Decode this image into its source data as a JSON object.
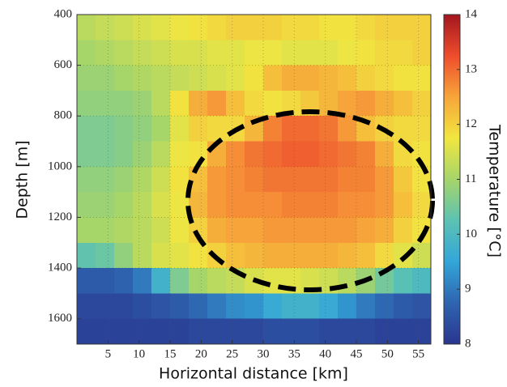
{
  "chart_data": {
    "type": "heatmap",
    "xlabel": "Horizontal distance [km]",
    "ylabel": "Depth [m]",
    "colorbar_label": "Temperature [°C]",
    "xlim": [
      0,
      57
    ],
    "ylim": [
      1700,
      400
    ],
    "xticks": [
      5,
      10,
      15,
      20,
      25,
      30,
      35,
      40,
      45,
      50,
      55
    ],
    "yticks": [
      400,
      600,
      800,
      1000,
      1200,
      1400,
      1600
    ],
    "grid": true,
    "clim": [
      8,
      14
    ],
    "cticks": [
      8,
      9,
      10,
      11,
      12,
      13,
      14
    ],
    "colormap": [
      "#2a3590",
      "#2e64b0",
      "#33a6d8",
      "#5cc2b3",
      "#a6d56a",
      "#f1e640",
      "#f7a53a",
      "#ee4d2c",
      "#a3161e"
    ],
    "xbins": [
      0,
      3,
      6,
      9,
      12,
      15,
      18,
      21,
      24,
      27,
      30,
      33,
      36,
      39,
      42,
      45,
      48,
      51,
      54,
      57
    ],
    "ybins": [
      400,
      500,
      600,
      700,
      800,
      900,
      1000,
      1100,
      1200,
      1300,
      1400,
      1500,
      1600,
      1700
    ],
    "z": [
      [
        11.2,
        11.3,
        11.4,
        11.5,
        11.6,
        11.7,
        11.8,
        11.9,
        12.0,
        12.0,
        12.0,
        11.9,
        11.9,
        11.8,
        11.8,
        11.9,
        12.0,
        12.0,
        12.0
      ],
      [
        11.0,
        11.1,
        11.2,
        11.3,
        11.4,
        11.5,
        11.5,
        11.6,
        11.6,
        11.7,
        11.7,
        11.6,
        11.6,
        11.6,
        11.7,
        11.8,
        11.9,
        11.9,
        12.0
      ],
      [
        10.9,
        10.9,
        11.0,
        11.1,
        11.2,
        11.3,
        11.4,
        11.5,
        11.6,
        11.8,
        12.2,
        12.4,
        12.4,
        12.3,
        12.2,
        12.0,
        11.9,
        11.8,
        11.8
      ],
      [
        10.8,
        10.8,
        10.8,
        10.9,
        11.2,
        11.8,
        12.4,
        12.6,
        12.2,
        11.9,
        11.8,
        11.9,
        12.1,
        12.3,
        12.5,
        12.6,
        12.4,
        12.2,
        12.0
      ],
      [
        10.6,
        10.6,
        10.7,
        10.8,
        11.0,
        11.6,
        12.0,
        11.9,
        11.9,
        12.3,
        12.8,
        13.0,
        13.0,
        12.9,
        12.6,
        12.2,
        12.0,
        11.9,
        11.9
      ],
      [
        10.6,
        10.6,
        10.7,
        10.9,
        11.2,
        11.7,
        11.8,
        12.4,
        12.7,
        12.9,
        13.0,
        13.1,
        13.1,
        13.0,
        12.9,
        12.8,
        12.4,
        11.9,
        11.8
      ],
      [
        10.8,
        10.8,
        10.9,
        11.1,
        11.4,
        11.8,
        12.2,
        12.6,
        12.7,
        12.8,
        12.9,
        12.9,
        12.9,
        12.9,
        12.8,
        12.8,
        12.6,
        12.1,
        11.8
      ],
      [
        10.9,
        10.9,
        11.0,
        11.2,
        11.5,
        11.7,
        12.3,
        12.6,
        12.7,
        12.7,
        12.7,
        12.8,
        12.8,
        12.8,
        12.7,
        12.7,
        12.6,
        12.2,
        11.9
      ],
      [
        11.0,
        11.0,
        11.1,
        11.2,
        11.4,
        11.7,
        12.0,
        12.4,
        12.5,
        12.5,
        12.6,
        12.6,
        12.6,
        12.6,
        12.6,
        12.5,
        12.4,
        12.0,
        11.8
      ],
      [
        10.3,
        10.4,
        10.8,
        11.2,
        11.5,
        11.6,
        11.8,
        12.0,
        12.2,
        12.3,
        12.4,
        12.4,
        12.4,
        12.4,
        12.3,
        12.2,
        11.9,
        11.6,
        11.4
      ],
      [
        8.6,
        8.6,
        8.7,
        9.0,
        9.8,
        10.6,
        11.0,
        11.2,
        11.3,
        11.5,
        11.6,
        11.6,
        11.5,
        11.4,
        11.2,
        10.9,
        10.5,
        10.2,
        10.0
      ],
      [
        8.3,
        8.3,
        8.3,
        8.4,
        8.5,
        8.6,
        8.8,
        9.0,
        9.2,
        9.3,
        9.6,
        9.8,
        9.8,
        9.6,
        9.3,
        9.0,
        8.8,
        8.6,
        8.5
      ],
      [
        8.2,
        8.2,
        8.2,
        8.2,
        8.2,
        8.2,
        8.3,
        8.3,
        8.3,
        8.3,
        8.4,
        8.4,
        8.4,
        8.3,
        8.3,
        8.3,
        8.2,
        8.2,
        8.2
      ]
    ]
  }
}
